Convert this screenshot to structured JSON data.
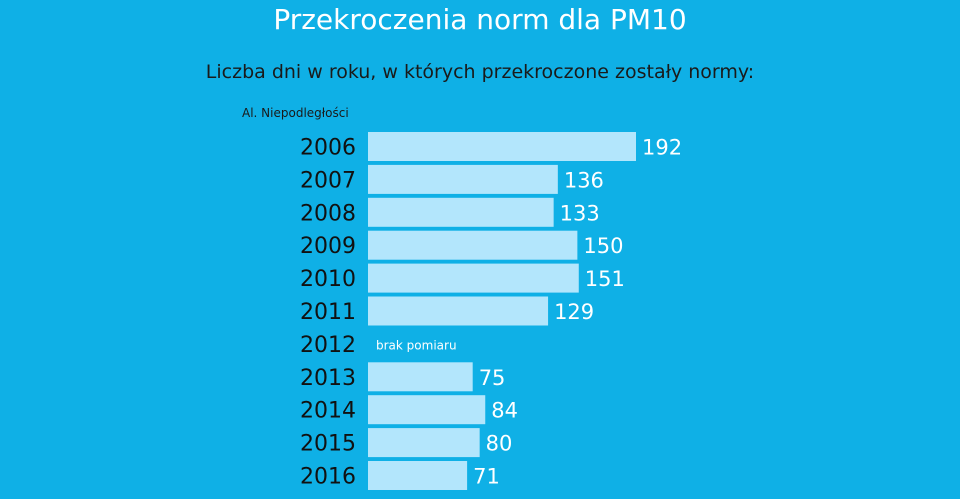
{
  "colors": {
    "background": "#0fb0e6",
    "bar": "#b3e6fc",
    "title": "#ffffff",
    "text": "#1a1a1a",
    "value_label": "#ffffff"
  },
  "chart_data": {
    "type": "bar",
    "orientation": "horizontal",
    "title": "Przekroczenia norm dla PM10",
    "subtitle": "Liczba dni w roku,  w których przekroczone zostały normy:",
    "station_label": "Al. Niepodległości",
    "categories": [
      "2006",
      "2007",
      "2008",
      "2009",
      "2010",
      "2011",
      "2012",
      "2013",
      "2014",
      "2015",
      "2016"
    ],
    "values": [
      192,
      136,
      133,
      150,
      151,
      129,
      null,
      75,
      84,
      80,
      71
    ],
    "missing_note": "brak pomiaru",
    "xlim": [
      0,
      200
    ],
    "grid": false,
    "legend": "none"
  }
}
